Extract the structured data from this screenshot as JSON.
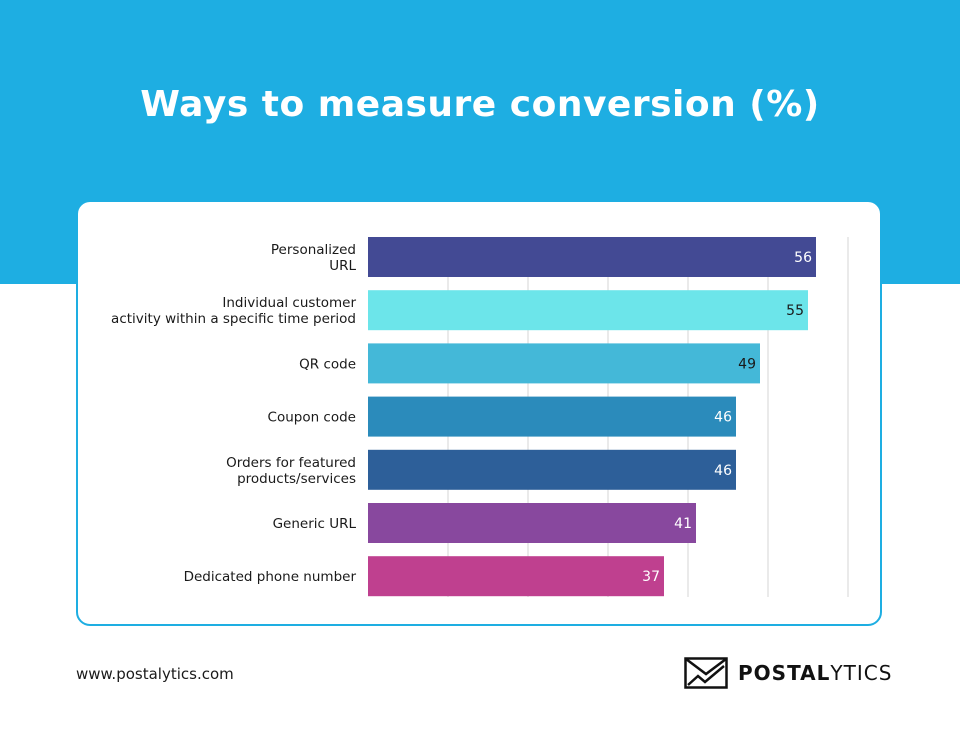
{
  "header": {
    "title": "Ways to measure conversion (%)"
  },
  "footer": {
    "url": "www.postalytics.com",
    "logo_bold": "POSTAL",
    "logo_light": "YTICS",
    "logo_icon": "envelope-chart-icon"
  },
  "colors": {
    "banner": "#1eaee2",
    "bars": [
      "#434a94",
      "#6ce5ea",
      "#44b8d8",
      "#2b8bbb",
      "#2d5f99",
      "#88489e",
      "#bf408f"
    ],
    "value_label_dark": "#1a1a1a",
    "value_label_light": "#ffffff"
  },
  "chart_data": {
    "type": "bar",
    "orientation": "horizontal",
    "title": "Ways to measure conversion (%)",
    "categories": [
      [
        "Personalized",
        "URL"
      ],
      [
        "Individual customer",
        "activity within a specific time period"
      ],
      [
        "QR code"
      ],
      [
        "Coupon code"
      ],
      [
        "Orders for featured ",
        "products/services"
      ],
      [
        "Generic URL"
      ],
      [
        "Dedicated phone number"
      ]
    ],
    "values": [
      56,
      55,
      49,
      46,
      46,
      41,
      37
    ],
    "xlim": [
      0,
      60
    ],
    "grid": true,
    "data_labels": true,
    "value_label_colors": [
      "light",
      "dark",
      "dark",
      "light",
      "light",
      "light",
      "light"
    ]
  }
}
